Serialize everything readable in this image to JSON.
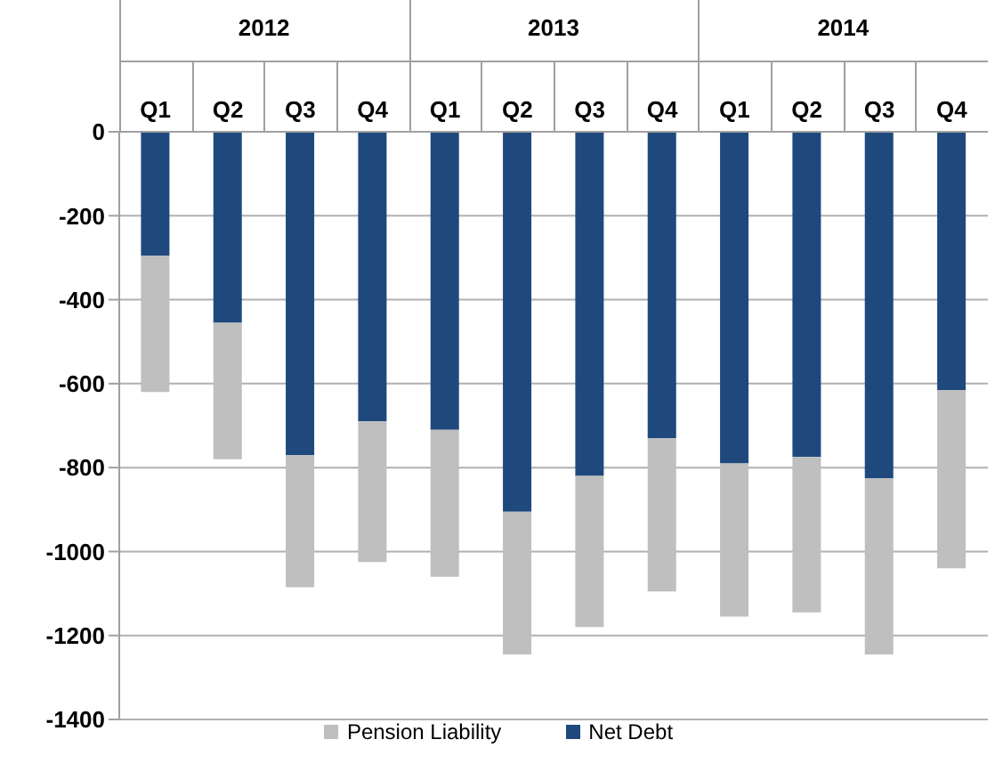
{
  "chart_data": {
    "type": "bar",
    "stacked": true,
    "categories": [
      "Q1",
      "Q2",
      "Q3",
      "Q4",
      "Q1",
      "Q2",
      "Q3",
      "Q4",
      "Q1",
      "Q2",
      "Q3",
      "Q4"
    ],
    "series": [
      {
        "name": "Net Debt",
        "color": "#1f497d",
        "values": [
          -295,
          -455,
          -770,
          -690,
          -710,
          -905,
          -820,
          -730,
          -790,
          -775,
          -825,
          -615
        ]
      },
      {
        "name": "Pension Liability",
        "color": "#bfbfbf",
        "values": [
          -325,
          -325,
          -315,
          -335,
          -350,
          -340,
          -360,
          -365,
          -365,
          -370,
          -420,
          -425
        ]
      }
    ],
    "ylim": [
      -1400,
      0
    ],
    "yticks": [
      0,
      -200,
      -400,
      -600,
      -800,
      -1000,
      -1200,
      -1400
    ],
    "grid": "y",
    "legend": "bottom",
    "annotations": [
      "2012",
      "2013",
      "2014"
    ]
  }
}
